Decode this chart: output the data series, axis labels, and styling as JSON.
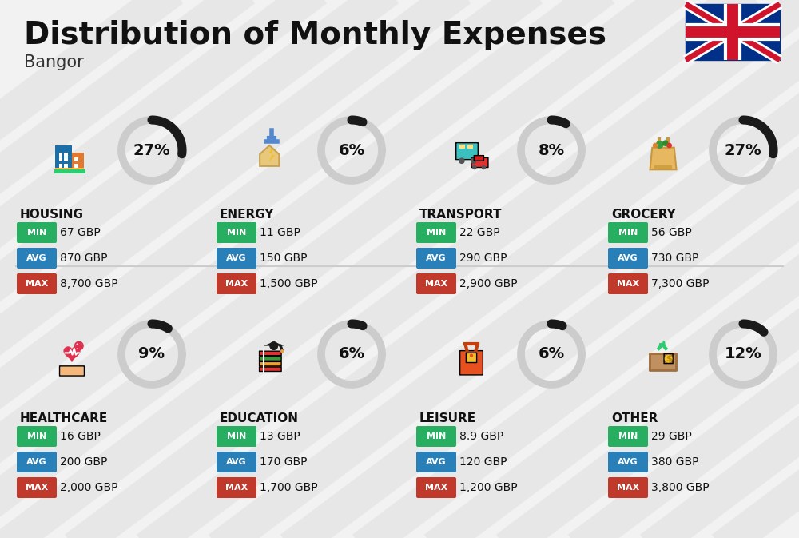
{
  "title": "Distribution of Monthly Expenses",
  "subtitle": "Bangor",
  "bg_color": "#f2f2f2",
  "categories": [
    {
      "name": "HOUSING",
      "pct": 27,
      "min": "67 GBP",
      "avg": "870 GBP",
      "max": "8,700 GBP",
      "row": 0,
      "col": 0
    },
    {
      "name": "ENERGY",
      "pct": 6,
      "min": "11 GBP",
      "avg": "150 GBP",
      "max": "1,500 GBP",
      "row": 0,
      "col": 1
    },
    {
      "name": "TRANSPORT",
      "pct": 8,
      "min": "22 GBP",
      "avg": "290 GBP",
      "max": "2,900 GBP",
      "row": 0,
      "col": 2
    },
    {
      "name": "GROCERY",
      "pct": 27,
      "min": "56 GBP",
      "avg": "730 GBP",
      "max": "7,300 GBP",
      "row": 0,
      "col": 3
    },
    {
      "name": "HEALTHCARE",
      "pct": 9,
      "min": "16 GBP",
      "avg": "200 GBP",
      "max": "2,000 GBP",
      "row": 1,
      "col": 0
    },
    {
      "name": "EDUCATION",
      "pct": 6,
      "min": "13 GBP",
      "avg": "170 GBP",
      "max": "1,700 GBP",
      "row": 1,
      "col": 1
    },
    {
      "name": "LEISURE",
      "pct": 6,
      "min": "8.9 GBP",
      "avg": "120 GBP",
      "max": "1,200 GBP",
      "row": 1,
      "col": 2
    },
    {
      "name": "OTHER",
      "pct": 12,
      "min": "29 GBP",
      "avg": "380 GBP",
      "max": "3,800 GBP",
      "row": 1,
      "col": 3
    }
  ],
  "color_min": "#27ae60",
  "color_avg": "#2980b9",
  "color_max": "#c0392b",
  "arc_dark": "#1a1a1a",
  "arc_light": "#cccccc",
  "stripe_color": "#c8c8c8",
  "title_color": "#111111",
  "sub_color": "#333333"
}
